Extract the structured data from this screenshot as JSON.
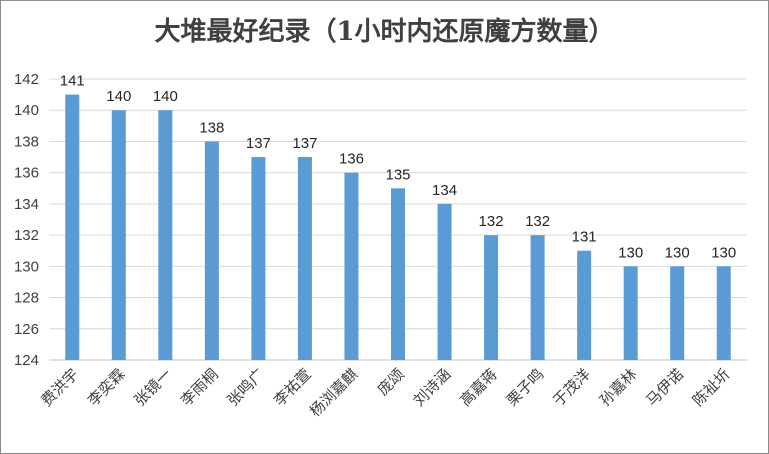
{
  "chart_data": {
    "type": "bar",
    "title": "大堆最好纪录（1小时内还原魔方数量）",
    "xlabel": "",
    "ylabel": "",
    "ylim": [
      124,
      142
    ],
    "yticks": [
      124,
      126,
      128,
      130,
      132,
      134,
      136,
      138,
      140,
      142
    ],
    "grid": true,
    "legend": "none",
    "bar_color": "#5b9bd5",
    "categories": [
      "费洪宇",
      "李奕霖",
      "张镜一",
      "李雨桐",
      "张鸣广",
      "李祐萱",
      "杨浏嘉麒",
      "庞颂",
      "刘诗涵",
      "高嘉蒋",
      "栗子鸣",
      "于茂洋",
      "孙嘉林",
      "马伊诺",
      "陈祉圻"
    ],
    "values": [
      141,
      140,
      140,
      138,
      137,
      137,
      136,
      135,
      134,
      132,
      132,
      131,
      130,
      130,
      130
    ]
  }
}
